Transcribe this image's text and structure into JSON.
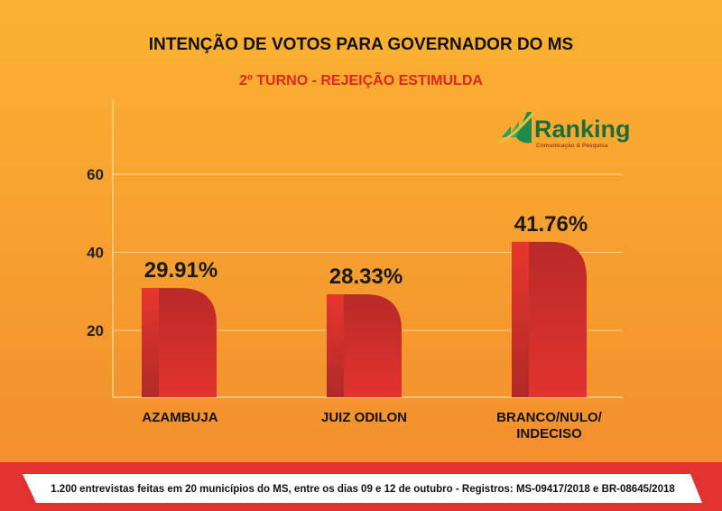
{
  "chart_data": {
    "type": "bar",
    "title": "INTENÇÃO DE VOTOS PARA GOVERNADOR DO MS",
    "subtitle": "2º TURNO - REJEIÇÃO ESTIMULDA",
    "categories": [
      "AZAMBUJA",
      "JUIZ ODILON",
      "BRANCO/NULO/ INDECISO"
    ],
    "category_lines": [
      [
        "AZAMBUJA"
      ],
      [
        "JUIZ ODILON"
      ],
      [
        "BRANCO/NULO/",
        "INDECISO"
      ]
    ],
    "values": [
      29.91,
      28.33,
      41.76
    ],
    "data_labels": [
      "29.91%",
      "28.33%",
      "41.76%"
    ],
    "yticks": [
      20,
      40,
      60
    ],
    "ytick_labels": [
      "20",
      "40",
      "60"
    ],
    "ylim": [
      0,
      80
    ],
    "grid": true,
    "xlabel": "",
    "ylabel": "",
    "colors": {
      "bar_front": "#e8352f",
      "bar_back": "#c42f2b",
      "background_top": "#fbb233",
      "background_bottom": "#f28b2c"
    }
  },
  "logo": {
    "name": "Ranking",
    "tagline": "Comunicação & Pesquisa"
  },
  "footer": {
    "text": "1.200 entrevistas feitas em 20 municípios do MS, entre os dias 09 e 12 de outubro - Registros:  MS-09417/2018 e BR-08645/2018"
  }
}
